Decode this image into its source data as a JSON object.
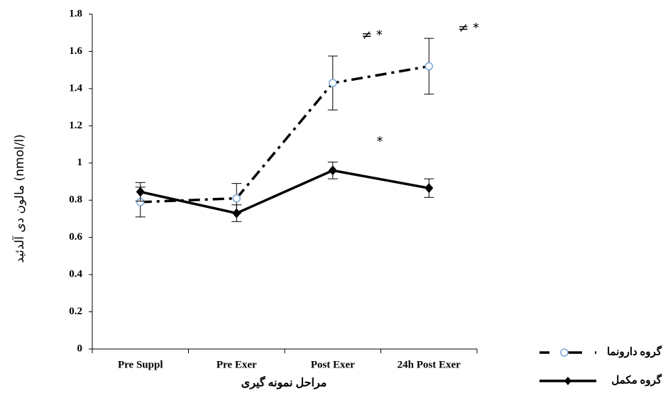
{
  "chart_data": {
    "type": "line",
    "categories": [
      "Pre Suppl",
      "Pre Exer",
      "Post Exer",
      "24h Post Exer"
    ],
    "x_label": "مراحل نمونه گیری",
    "y_label": "مالون دی آلدئید (nmol/l)",
    "ylim": [
      0,
      1.8
    ],
    "yticks": [
      0,
      0.2,
      0.4,
      0.6,
      0.8,
      1,
      1.2,
      1.4,
      1.6,
      1.8
    ],
    "series": [
      {
        "name": "گروه  دارونما",
        "color": "#000000",
        "marker_color": "#7aa6d6",
        "style": "dashdot",
        "values": [
          0.79,
          0.81,
          1.43,
          1.52
        ],
        "errors": [
          0.08,
          0.08,
          0.145,
          0.15
        ]
      },
      {
        "name": "گروه مکمل",
        "color": "#000000",
        "style": "solid",
        "values": [
          0.845,
          0.73,
          0.96,
          0.865
        ],
        "errors": [
          0.05,
          0.045,
          0.045,
          0.05
        ]
      }
    ],
    "annotations": [
      "≠ *",
      "≠ *",
      "*"
    ]
  }
}
